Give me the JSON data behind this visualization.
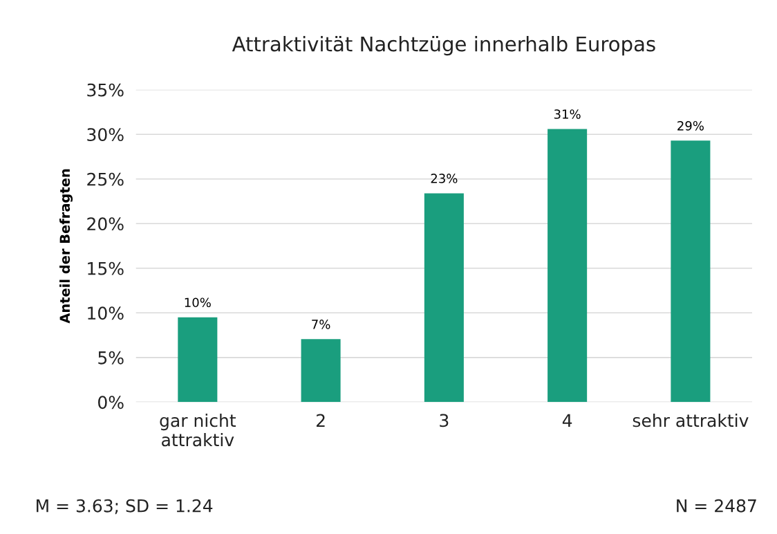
{
  "chart_data": {
    "type": "bar",
    "title": "Attraktivität Nachtzüge innerhalb Europas",
    "ylabel": "Anteil der Befragten",
    "categories": [
      "gar nicht\nattraktiv",
      "2",
      "3",
      "4",
      "sehr attraktiv"
    ],
    "values": [
      9.5,
      7.05,
      23.4,
      30.6,
      29.3
    ],
    "value_labels": [
      "10%",
      "7%",
      "23%",
      "31%",
      "29%"
    ],
    "color": "#1a9e7e",
    "ylim": [
      0,
      35
    ],
    "yticks": [
      {
        "value": 0,
        "label": "0%"
      },
      {
        "value": 5,
        "label": "5%"
      },
      {
        "value": 10,
        "label": "10%"
      },
      {
        "value": 15,
        "label": "15%"
      },
      {
        "value": 20,
        "label": "20%"
      },
      {
        "value": 25,
        "label": "25%"
      },
      {
        "value": 30,
        "label": "30%"
      },
      {
        "value": 35,
        "label": "35%"
      }
    ],
    "grid": "y",
    "legend": false,
    "annotations": [
      "M = 3.63; SD = 1.24",
      "N = 2487"
    ]
  }
}
